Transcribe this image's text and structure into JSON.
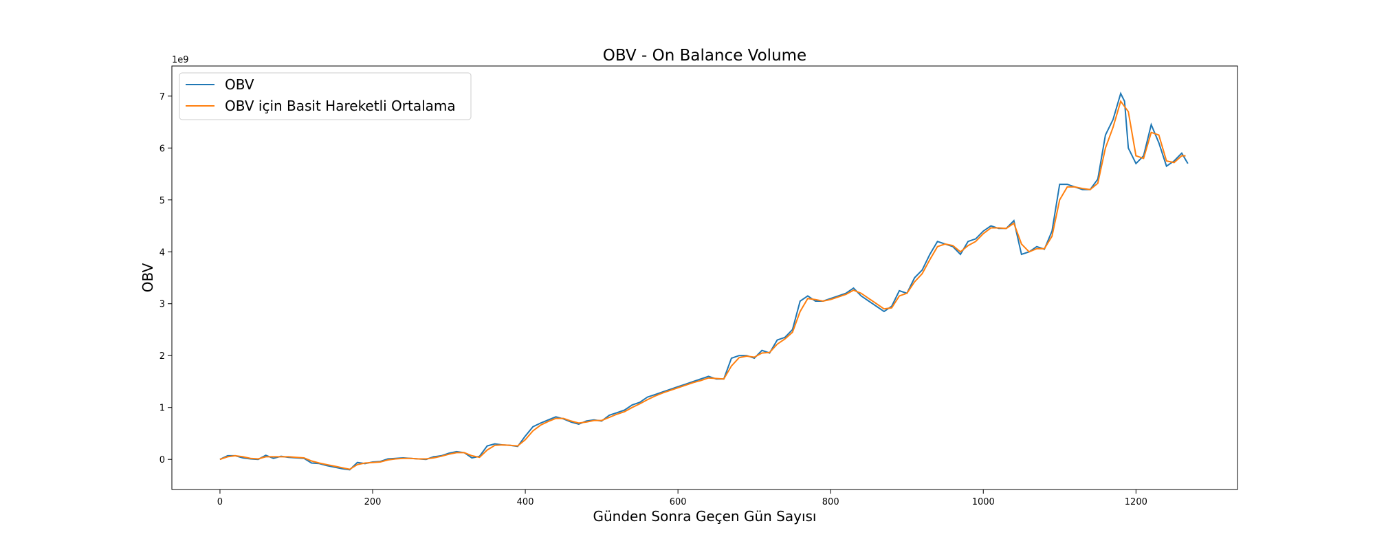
{
  "chart_data": {
    "type": "line",
    "title": "OBV - On Balance Volume",
    "xlabel": "Günden Sonra Geçen Gün Sayısı",
    "ylabel": "OBV",
    "y_offset_label": "1e9",
    "xlim": [
      -63,
      1333
    ],
    "ylim": [
      -0.58,
      7.58
    ],
    "x_ticks": [
      0,
      200,
      400,
      600,
      800,
      1000,
      1200
    ],
    "y_ticks": [
      0,
      1,
      2,
      3,
      4,
      5,
      6,
      7
    ],
    "x_tick_labels": [
      "0",
      "200",
      "400",
      "600",
      "800",
      "1000",
      "1200"
    ],
    "y_tick_labels": [
      "0",
      "1",
      "2",
      "3",
      "4",
      "5",
      "6",
      "7"
    ],
    "grid": false,
    "legend": {
      "placement": "top-left",
      "entries": [
        "OBV",
        "OBV için Basit Hareketli Ortalama"
      ]
    },
    "colors": {
      "obv": "#1f77b4",
      "sma": "#ff7f0e"
    },
    "series": [
      {
        "name": "OBV",
        "x": [
          0,
          10,
          20,
          30,
          40,
          50,
          60,
          70,
          80,
          90,
          100,
          110,
          120,
          130,
          140,
          150,
          160,
          170,
          180,
          190,
          200,
          210,
          220,
          230,
          240,
          250,
          260,
          270,
          280,
          290,
          300,
          310,
          320,
          330,
          340,
          350,
          360,
          370,
          380,
          390,
          400,
          410,
          420,
          430,
          440,
          450,
          460,
          470,
          480,
          490,
          500,
          510,
          520,
          530,
          540,
          550,
          560,
          570,
          580,
          590,
          600,
          610,
          620,
          630,
          640,
          650,
          660,
          670,
          680,
          690,
          700,
          710,
          720,
          730,
          740,
          750,
          760,
          770,
          780,
          790,
          800,
          810,
          820,
          830,
          840,
          850,
          860,
          870,
          880,
          890,
          900,
          910,
          920,
          930,
          940,
          950,
          960,
          970,
          980,
          990,
          1000,
          1010,
          1020,
          1030,
          1040,
          1050,
          1060,
          1070,
          1080,
          1090,
          1100,
          1110,
          1120,
          1130,
          1140,
          1150,
          1160,
          1170,
          1180,
          1185,
          1190,
          1200,
          1210,
          1220,
          1230,
          1240,
          1250,
          1260,
          1268
        ],
        "y": [
          0.0,
          0.07,
          0.07,
          0.03,
          0.01,
          0.0,
          0.08,
          0.02,
          0.06,
          0.04,
          0.03,
          0.02,
          -0.07,
          -0.08,
          -0.12,
          -0.15,
          -0.18,
          -0.2,
          -0.06,
          -0.08,
          -0.05,
          -0.04,
          0.01,
          0.02,
          0.03,
          0.02,
          0.01,
          0.0,
          0.05,
          0.07,
          0.12,
          0.15,
          0.13,
          0.03,
          0.06,
          0.26,
          0.3,
          0.28,
          0.27,
          0.25,
          0.45,
          0.63,
          0.7,
          0.76,
          0.82,
          0.78,
          0.72,
          0.68,
          0.74,
          0.76,
          0.74,
          0.85,
          0.9,
          0.95,
          1.05,
          1.1,
          1.2,
          1.25,
          1.3,
          1.35,
          1.4,
          1.45,
          1.5,
          1.55,
          1.6,
          1.55,
          1.55,
          1.95,
          2.0,
          2.0,
          1.95,
          2.1,
          2.05,
          2.3,
          2.35,
          2.5,
          3.05,
          3.15,
          3.05,
          3.05,
          3.1,
          3.15,
          3.2,
          3.3,
          3.15,
          3.05,
          2.95,
          2.85,
          2.95,
          3.25,
          3.2,
          3.5,
          3.65,
          3.95,
          4.2,
          4.15,
          4.1,
          3.95,
          4.2,
          4.25,
          4.4,
          4.5,
          4.45,
          4.45,
          4.6,
          3.95,
          4.0,
          4.1,
          4.05,
          4.4,
          5.3,
          5.3,
          5.25,
          5.2,
          5.2,
          5.4,
          6.25,
          6.55,
          7.05,
          6.9,
          6.0,
          5.7,
          5.85,
          6.45,
          6.1,
          5.65,
          5.75,
          5.9,
          5.7
        ]
      },
      {
        "name": "OBV için Basit Hareketli Ortalama",
        "x": [
          0,
          10,
          20,
          30,
          40,
          50,
          60,
          70,
          80,
          90,
          100,
          110,
          120,
          130,
          140,
          150,
          160,
          170,
          180,
          190,
          200,
          210,
          220,
          230,
          240,
          250,
          260,
          270,
          280,
          290,
          300,
          310,
          320,
          330,
          340,
          350,
          360,
          370,
          380,
          390,
          400,
          410,
          420,
          430,
          440,
          450,
          460,
          470,
          480,
          490,
          500,
          510,
          520,
          530,
          540,
          550,
          560,
          570,
          580,
          590,
          600,
          610,
          620,
          630,
          640,
          650,
          660,
          670,
          680,
          690,
          700,
          710,
          720,
          730,
          740,
          750,
          760,
          770,
          780,
          790,
          800,
          810,
          820,
          830,
          840,
          850,
          860,
          870,
          880,
          890,
          900,
          910,
          920,
          930,
          940,
          950,
          960,
          970,
          980,
          990,
          1000,
          1010,
          1020,
          1030,
          1040,
          1050,
          1060,
          1070,
          1080,
          1090,
          1100,
          1110,
          1120,
          1130,
          1140,
          1150,
          1160,
          1170,
          1180,
          1190,
          1200,
          1210,
          1220,
          1230,
          1240,
          1250,
          1260,
          1265
        ],
        "y": [
          0.0,
          0.05,
          0.07,
          0.05,
          0.02,
          0.01,
          0.05,
          0.05,
          0.05,
          0.05,
          0.04,
          0.03,
          -0.03,
          -0.07,
          -0.1,
          -0.13,
          -0.16,
          -0.19,
          -0.1,
          -0.07,
          -0.06,
          -0.05,
          -0.01,
          0.01,
          0.02,
          0.02,
          0.01,
          0.01,
          0.03,
          0.06,
          0.1,
          0.13,
          0.13,
          0.07,
          0.04,
          0.18,
          0.27,
          0.28,
          0.27,
          0.26,
          0.38,
          0.55,
          0.66,
          0.73,
          0.79,
          0.79,
          0.74,
          0.7,
          0.72,
          0.75,
          0.75,
          0.81,
          0.87,
          0.92,
          1.0,
          1.07,
          1.15,
          1.22,
          1.28,
          1.33,
          1.38,
          1.43,
          1.48,
          1.52,
          1.57,
          1.56,
          1.55,
          1.8,
          1.96,
          1.99,
          1.97,
          2.05,
          2.06,
          2.22,
          2.32,
          2.45,
          2.85,
          3.1,
          3.08,
          3.05,
          3.08,
          3.13,
          3.18,
          3.26,
          3.2,
          3.1,
          3.0,
          2.9,
          2.92,
          3.15,
          3.2,
          3.42,
          3.58,
          3.85,
          4.1,
          4.15,
          4.12,
          4.0,
          4.12,
          4.2,
          4.35,
          4.46,
          4.46,
          4.45,
          4.55,
          4.15,
          4.0,
          4.06,
          4.06,
          4.3,
          5.0,
          5.25,
          5.25,
          5.22,
          5.2,
          5.32,
          6.0,
          6.4,
          6.9,
          6.7,
          5.85,
          5.8,
          6.3,
          6.25,
          5.75,
          5.72,
          5.85,
          5.85
        ]
      }
    ]
  }
}
